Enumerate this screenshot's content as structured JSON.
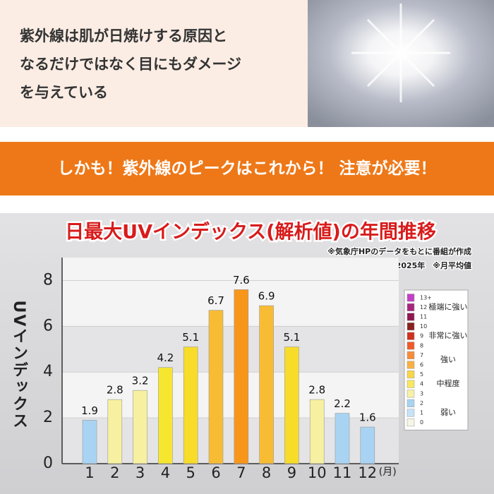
{
  "intro": {
    "lines": [
      "紫外線は肌が日焼けする原因と",
      "なるだけではなく目にもダメージ",
      "を与えている"
    ]
  },
  "banner": "しかも！紫外線のピークはこれから！ 注意が必要！",
  "chart_data": {
    "type": "bar",
    "title": "日最大UVインデックス(解析値)の年間推移",
    "notes": [
      "※気象庁HPのデータをもとに番組が作成",
      "※東京・2025年　※月平均値"
    ],
    "ylabel": "UVインデックス",
    "x_unit": "(月)",
    "categories": [
      "1",
      "2",
      "3",
      "4",
      "5",
      "6",
      "7",
      "8",
      "9",
      "10",
      "11",
      "12"
    ],
    "values": [
      1.9,
      2.8,
      3.2,
      4.2,
      5.1,
      6.7,
      7.6,
      6.9,
      5.1,
      2.8,
      2.2,
      1.6
    ],
    "colors": [
      "#a9d3f2",
      "#f7f0a0",
      "#f7f0a0",
      "#f7e630",
      "#f7dc2a",
      "#f8bc34",
      "#f8961a",
      "#f8bc34",
      "#f7dc2a",
      "#f7f0a0",
      "#a9d3f2",
      "#a9d3f2"
    ],
    "ylim": [
      0,
      9
    ],
    "yticks": [
      0,
      2,
      4,
      6,
      8
    ],
    "grid": true,
    "legend": {
      "levels": [
        "13+",
        "12",
        "11",
        "10",
        "9",
        "8",
        "7",
        "6",
        "5",
        "4",
        "3",
        "2",
        "1",
        "0"
      ],
      "colors": [
        "#c23fc4",
        "#a8257e",
        "#8e1850",
        "#8a2020",
        "#d0301f",
        "#ee5a2c",
        "#f58d3c",
        "#f8b044",
        "#f8d64a",
        "#f8e862",
        "#f7f0a8",
        "#a9d3f2",
        "#c6e2f8",
        "#f6f6e6"
      ],
      "classes": [
        "極端に強い",
        "非常に強い",
        "強い",
        "中程度",
        "弱い"
      ]
    }
  }
}
